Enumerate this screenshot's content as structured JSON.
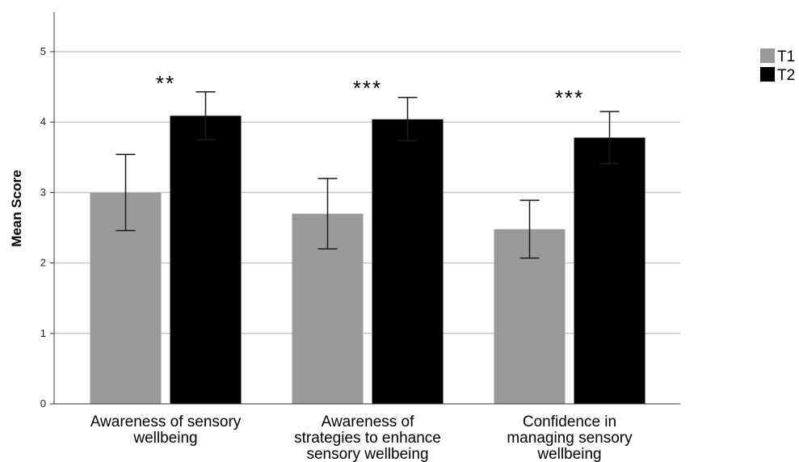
{
  "chart_data": {
    "type": "bar",
    "ylabel": "Mean Score",
    "ylim": [
      0,
      5.5
    ],
    "yticks": [
      0,
      1,
      2,
      3,
      4,
      5
    ],
    "grid": true,
    "legend_position": "top-right",
    "categories": [
      [
        "Awareness of sensory",
        "wellbeing"
      ],
      [
        "Awareness of",
        "strategies to enhance",
        "sensory wellbeing"
      ],
      [
        "Confidence in",
        "managing sensory",
        "wellbeing"
      ]
    ],
    "series": [
      {
        "name": "T1",
        "color": "#999999",
        "values": [
          3.0,
          2.7,
          2.48
        ],
        "error_low": [
          2.46,
          2.2,
          2.07
        ],
        "error_high": [
          3.54,
          3.2,
          2.89
        ]
      },
      {
        "name": "T2",
        "color": "#000000",
        "values": [
          4.09,
          4.04,
          3.78
        ],
        "error_low": [
          3.75,
          3.74,
          3.41
        ],
        "error_high": [
          4.43,
          4.35,
          4.15
        ]
      }
    ],
    "annotations": [
      "**",
      "***",
      "***"
    ]
  }
}
